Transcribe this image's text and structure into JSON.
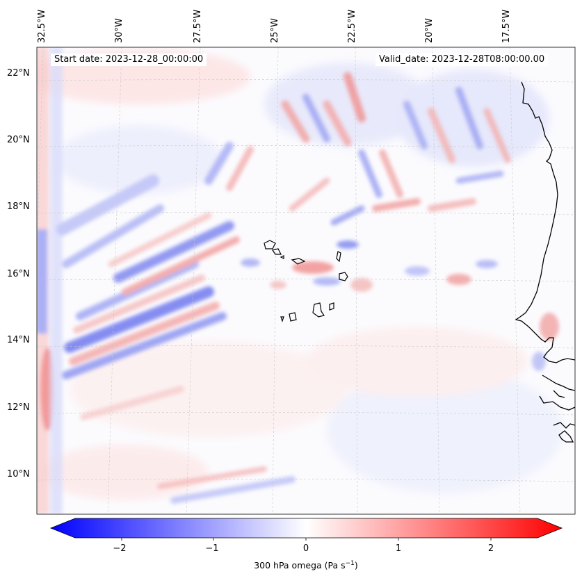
{
  "map": {
    "start_date": "Start date: 2023-12-28_00:00:00",
    "valid_date": "Valid_date: 2023-12-28T08:00:00.00",
    "field": "300 hPa omega",
    "lon_labels": [
      "32.5°W",
      "30°W",
      "27.5°W",
      "25°W",
      "22.5°W",
      "20°W",
      "17.5°W"
    ],
    "lat_labels": [
      "22°N",
      "20°N",
      "18°N",
      "16°N",
      "14°N",
      "12°N",
      "10°N"
    ],
    "features": [
      "Cape Verde Islands",
      "West African coastline"
    ],
    "colors": {
      "negative": "#0000ff",
      "zero": "#ffffff",
      "positive": "#ff0000",
      "coast": "#000000"
    }
  },
  "colorbar": {
    "ticks": [
      "−2",
      "−1",
      "0",
      "1",
      "2"
    ],
    "tick_values": [
      -2,
      -1,
      0,
      1,
      2
    ],
    "range": [
      -2.5,
      2.5
    ],
    "label": "300 hPa omega (Pa s",
    "label_exp": "−1",
    "label_close": ")",
    "cmap": "bwr"
  }
}
